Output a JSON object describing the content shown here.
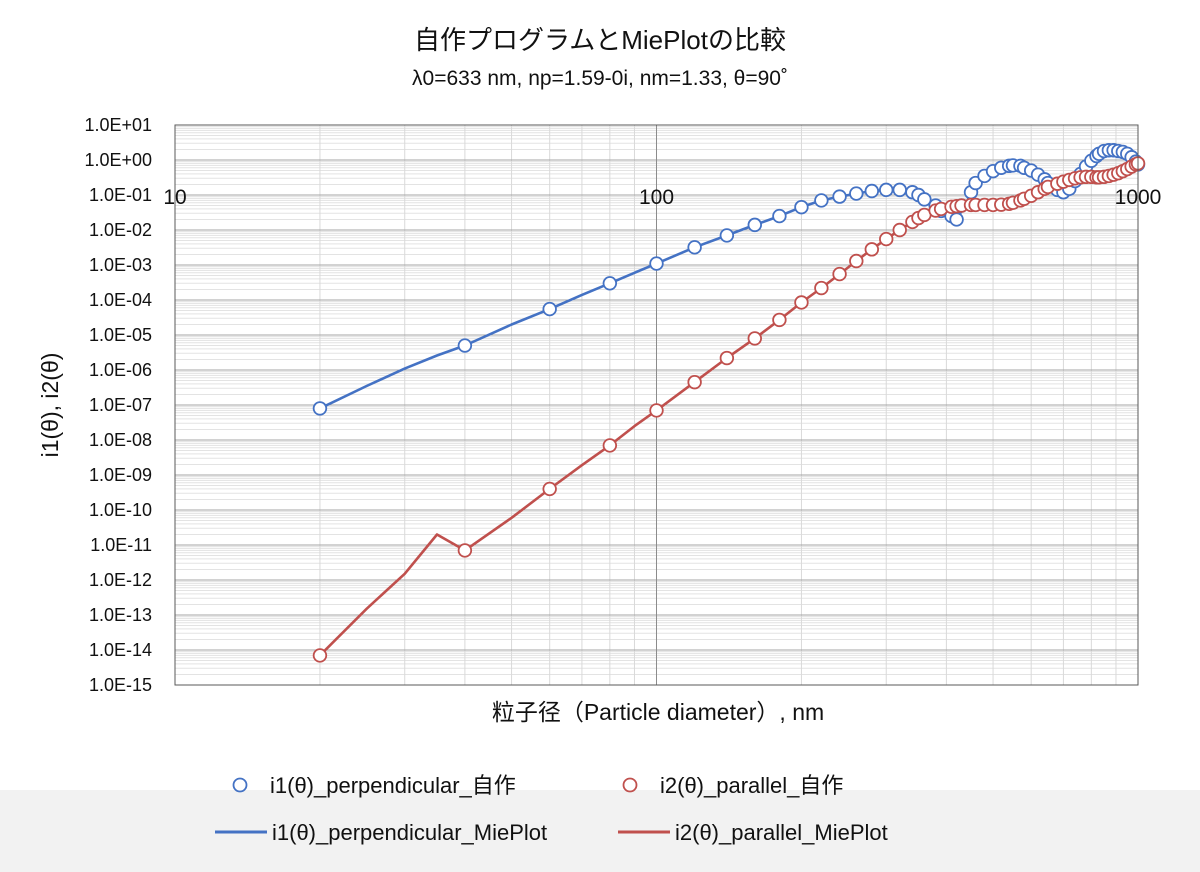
{
  "chart_data": {
    "type": "scatter",
    "title": "自作プログラムとMiePlotの比較",
    "subtitle": "λ0=633 nm, np=1.59-0i, nm=1.33, θ=90˚",
    "xlabel": "粒子径（Particle diameter）, nm",
    "ylabel": "i1(θ), i2(θ)",
    "x_scale": "log",
    "y_scale": "log",
    "xlim": [
      10,
      1000
    ],
    "ylim": [
      1e-15,
      10
    ],
    "grid": true,
    "legend_position": "bottom",
    "x_tick_labels": [
      "10",
      "100",
      "1000"
    ],
    "y_tick_labels": [
      "1.0E+01",
      "1.0E+00",
      "1.0E-01",
      "1.0E-02",
      "1.0E-03",
      "1.0E-04",
      "1.0E-05",
      "1.0E-06",
      "1.0E-07",
      "1.0E-08",
      "1.0E-09",
      "1.0E-10",
      "1.0E-11",
      "1.0E-12",
      "1.0E-13",
      "1.0E-14",
      "1.0E-15"
    ],
    "series": [
      {
        "name": "i1(θ)_perpendicular_自作",
        "kind": "markers",
        "color": "#4472c4",
        "x": [
          20,
          40,
          60,
          80,
          100,
          120,
          140,
          160,
          180,
          200,
          220,
          240,
          260,
          280,
          300,
          320,
          340,
          350,
          360,
          380,
          390,
          410,
          420,
          430,
          450,
          460,
          480,
          500,
          520,
          540,
          550,
          570,
          580,
          600,
          620,
          640,
          650,
          680,
          700,
          720,
          740,
          760,
          780,
          800,
          820,
          830,
          850,
          870,
          890,
          910,
          930,
          950,
          970,
          990,
          1000
        ],
        "y": [
          8e-08,
          5e-06,
          5.5e-05,
          0.0003,
          0.0011,
          0.0032,
          0.007,
          0.014,
          0.025,
          0.045,
          0.07,
          0.09,
          0.11,
          0.13,
          0.14,
          0.14,
          0.12,
          0.1,
          0.075,
          0.05,
          0.035,
          0.025,
          0.02,
          0.05,
          0.12,
          0.22,
          0.35,
          0.48,
          0.6,
          0.68,
          0.7,
          0.68,
          0.6,
          0.5,
          0.38,
          0.28,
          0.22,
          0.14,
          0.12,
          0.15,
          0.25,
          0.4,
          0.65,
          0.95,
          1.3,
          1.5,
          1.8,
          1.9,
          1.9,
          1.8,
          1.7,
          1.5,
          1.2,
          0.9,
          0.75
        ]
      },
      {
        "name": "i2(θ)_parallel_自作",
        "kind": "markers",
        "color": "#c0504d",
        "x": [
          20,
          40,
          60,
          80,
          100,
          120,
          140,
          160,
          180,
          200,
          220,
          240,
          260,
          280,
          300,
          320,
          340,
          350,
          360,
          380,
          390,
          410,
          420,
          430,
          450,
          460,
          480,
          500,
          520,
          540,
          550,
          570,
          580,
          600,
          620,
          640,
          650,
          680,
          700,
          720,
          740,
          760,
          780,
          800,
          820,
          830,
          850,
          870,
          890,
          910,
          930,
          950,
          970,
          990,
          1000
        ],
        "y": [
          7e-15,
          7e-12,
          4e-10,
          7e-09,
          7e-08,
          4.5e-07,
          2.2e-06,
          8e-06,
          2.7e-05,
          8.5e-05,
          0.00022,
          0.00055,
          0.0013,
          0.0028,
          0.0055,
          0.01,
          0.017,
          0.022,
          0.027,
          0.036,
          0.04,
          0.046,
          0.048,
          0.05,
          0.052,
          0.052,
          0.052,
          0.052,
          0.053,
          0.056,
          0.06,
          0.07,
          0.078,
          0.095,
          0.12,
          0.15,
          0.17,
          0.21,
          0.24,
          0.27,
          0.3,
          0.32,
          0.33,
          0.33,
          0.32,
          0.32,
          0.33,
          0.35,
          0.38,
          0.42,
          0.48,
          0.55,
          0.65,
          0.75,
          0.8
        ]
      },
      {
        "name": "i1(θ)_perpendicular_MiePlot",
        "kind": "line",
        "color": "#4472c4",
        "x": [
          20,
          25,
          30,
          35,
          40,
          50,
          60,
          70,
          80,
          90,
          100,
          120,
          140,
          160,
          180,
          200,
          220,
          240,
          260,
          280,
          300,
          320,
          340,
          360,
          380,
          400,
          420,
          440,
          460,
          480,
          500,
          520,
          540,
          560,
          580,
          600,
          620,
          640,
          660,
          680,
          700,
          720,
          740,
          760,
          780,
          800,
          820,
          840,
          860,
          880,
          900,
          920,
          940,
          960,
          980,
          1000
        ],
        "y": [
          8e-08,
          3.5e-07,
          1.1e-06,
          2.6e-06,
          5e-06,
          2e-05,
          5.5e-05,
          0.00014,
          0.0003,
          0.0006,
          0.0011,
          0.0032,
          0.007,
          0.014,
          0.025,
          0.045,
          0.07,
          0.09,
          0.11,
          0.13,
          0.14,
          0.14,
          0.12,
          0.075,
          0.05,
          0.03,
          0.02,
          0.06,
          0.2,
          0.35,
          0.48,
          0.6,
          0.68,
          0.7,
          0.6,
          0.5,
          0.38,
          0.28,
          0.2,
          0.14,
          0.12,
          0.15,
          0.25,
          0.4,
          0.65,
          0.95,
          1.3,
          1.65,
          1.85,
          1.9,
          1.85,
          1.75,
          1.6,
          1.3,
          1.0,
          0.75
        ]
      },
      {
        "name": "i2(θ)_parallel_MiePlot",
        "kind": "line",
        "color": "#c0504d",
        "x": [
          20,
          25,
          30,
          35,
          40,
          50,
          60,
          70,
          80,
          90,
          100,
          120,
          140,
          160,
          180,
          200,
          220,
          240,
          260,
          280,
          300,
          320,
          340,
          360,
          380,
          400,
          420,
          440,
          460,
          480,
          500,
          520,
          540,
          560,
          580,
          600,
          620,
          640,
          660,
          680,
          700,
          720,
          740,
          760,
          780,
          800,
          820,
          840,
          860,
          880,
          900,
          920,
          940,
          960,
          980,
          1000
        ],
        "y": [
          7e-15,
          1.5e-13,
          1.5e-12,
          2e-11,
          7e-12,
          6e-11,
          4e-10,
          1.9e-09,
          7e-09,
          2.5e-08,
          7e-08,
          4.5e-07,
          2.2e-06,
          8e-06,
          2.7e-05,
          8.5e-05,
          0.00022,
          0.00055,
          0.0013,
          0.0028,
          0.0055,
          0.01,
          0.017,
          0.027,
          0.036,
          0.043,
          0.048,
          0.051,
          0.052,
          0.052,
          0.052,
          0.053,
          0.056,
          0.065,
          0.078,
          0.095,
          0.12,
          0.15,
          0.18,
          0.21,
          0.24,
          0.27,
          0.3,
          0.32,
          0.33,
          0.33,
          0.32,
          0.32,
          0.34,
          0.36,
          0.4,
          0.45,
          0.52,
          0.6,
          0.7,
          0.8
        ]
      }
    ]
  }
}
